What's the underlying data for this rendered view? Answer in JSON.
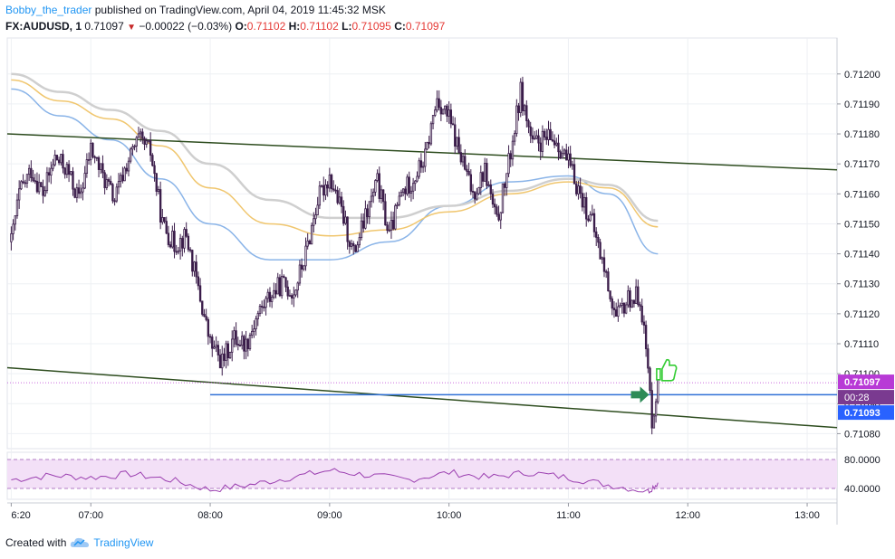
{
  "header": {
    "author": "Bobby_the_trader",
    "published_text": "published on TradingView.com, April 04, 2019 11:45:32 MSK",
    "symbol": "FX:AUDUSD, 1",
    "last": "0.71097",
    "change": "−0.00022 (−0.03%)",
    "o_label": "O:",
    "o_value": "0.71102",
    "h_label": "H:",
    "h_value": "0.71102",
    "l_label": "L:",
    "l_value": "0.71095",
    "c_label": "C:",
    "c_value": "0.71097"
  },
  "footer": {
    "created_with": "Created with",
    "brand": "TradingView"
  },
  "colors": {
    "candle": "#3b1d4a",
    "trendline": "#2e4d1f",
    "support": "#2f6fd6",
    "ma_fast": "#8ab4e8",
    "ma_mid": "#f0c66e",
    "ma_slow": "#cfcfcf",
    "rsi": "#9b3fb0",
    "rsi_band": "#f3e0f7",
    "price_badge": "#b83ad6",
    "level_badge": "#2962ff",
    "arrow": "#2e8b57",
    "thumb": "#33cc33"
  },
  "icons": {
    "arrow": "right-arrow-icon",
    "thumb": "thumbs-up-icon",
    "logo": "tradingview-cloud-icon"
  },
  "chart_data": {
    "type": "candlestick",
    "title": "",
    "xlabel": "",
    "ylabel": "",
    "x_tick_labels": [
      "6:20",
      "07:00",
      "08:00",
      "09:00",
      "10:00",
      "11:00",
      "12:00",
      "13:00"
    ],
    "x_tick_times": [
      "06:20",
      "07:00",
      "08:00",
      "09:00",
      "10:00",
      "11:00",
      "12:00",
      "13:00"
    ],
    "xlim": [
      "06:18",
      "13:15"
    ],
    "y_tick_labels": [
      "0.71080",
      "0.71090",
      "0.71100",
      "0.71110",
      "0.71120",
      "0.71130",
      "0.71140",
      "0.71150",
      "0.71160",
      "0.71170",
      "0.71180",
      "0.71190",
      "0.71200"
    ],
    "ylim": [
      0.71075,
      0.71212
    ],
    "grid": true,
    "close_path": [
      {
        "t": "06:20",
        "p": 0.71144
      },
      {
        "t": "06:24",
        "p": 0.7116
      },
      {
        "t": "06:30",
        "p": 0.71168
      },
      {
        "t": "06:36",
        "p": 0.7116
      },
      {
        "t": "06:42",
        "p": 0.71172
      },
      {
        "t": "06:48",
        "p": 0.71168
      },
      {
        "t": "06:54",
        "p": 0.71158
      },
      {
        "t": "07:00",
        "p": 0.71175
      },
      {
        "t": "07:06",
        "p": 0.71166
      },
      {
        "t": "07:12",
        "p": 0.71158
      },
      {
        "t": "07:18",
        "p": 0.7117
      },
      {
        "t": "07:24",
        "p": 0.71178
      },
      {
        "t": "07:30",
        "p": 0.71174
      },
      {
        "t": "07:36",
        "p": 0.7115
      },
      {
        "t": "07:42",
        "p": 0.71143
      },
      {
        "t": "07:48",
        "p": 0.71146
      },
      {
        "t": "07:54",
        "p": 0.71128
      },
      {
        "t": "08:00",
        "p": 0.7111
      },
      {
        "t": "08:06",
        "p": 0.71104
      },
      {
        "t": "08:12",
        "p": 0.71112
      },
      {
        "t": "08:18",
        "p": 0.7111
      },
      {
        "t": "08:24",
        "p": 0.7112
      },
      {
        "t": "08:30",
        "p": 0.71126
      },
      {
        "t": "08:36",
        "p": 0.7113
      },
      {
        "t": "08:42",
        "p": 0.71127
      },
      {
        "t": "08:48",
        "p": 0.7114
      },
      {
        "t": "08:54",
        "p": 0.71158
      },
      {
        "t": "09:00",
        "p": 0.71166
      },
      {
        "t": "09:06",
        "p": 0.71154
      },
      {
        "t": "09:12",
        "p": 0.7114
      },
      {
        "t": "09:18",
        "p": 0.71152
      },
      {
        "t": "09:24",
        "p": 0.71164
      },
      {
        "t": "09:30",
        "p": 0.71146
      },
      {
        "t": "09:36",
        "p": 0.7116
      },
      {
        "t": "09:42",
        "p": 0.71165
      },
      {
        "t": "09:48",
        "p": 0.71172
      },
      {
        "t": "09:54",
        "p": 0.71192
      },
      {
        "t": "10:00",
        "p": 0.71185
      },
      {
        "t": "10:06",
        "p": 0.71172
      },
      {
        "t": "10:12",
        "p": 0.7116
      },
      {
        "t": "10:18",
        "p": 0.71168
      },
      {
        "t": "10:24",
        "p": 0.7115
      },
      {
        "t": "10:30",
        "p": 0.7117
      },
      {
        "t": "10:36",
        "p": 0.71194
      },
      {
        "t": "10:42",
        "p": 0.71176
      },
      {
        "t": "10:48",
        "p": 0.71178
      },
      {
        "t": "10:54",
        "p": 0.71178
      },
      {
        "t": "11:00",
        "p": 0.7117
      },
      {
        "t": "11:06",
        "p": 0.7116
      },
      {
        "t": "11:12",
        "p": 0.7115
      },
      {
        "t": "11:18",
        "p": 0.71135
      },
      {
        "t": "11:24",
        "p": 0.71118
      },
      {
        "t": "11:30",
        "p": 0.71125
      },
      {
        "t": "11:36",
        "p": 0.71126
      },
      {
        "t": "11:39",
        "p": 0.71108
      },
      {
        "t": "11:42",
        "p": 0.71085
      },
      {
        "t": "11:45",
        "p": 0.71097
      }
    ],
    "moving_averages": [
      {
        "color": "#8ab4e8",
        "points": [
          {
            "t": "06:20",
            "p": 0.71195
          },
          {
            "t": "06:45",
            "p": 0.71186
          },
          {
            "t": "07:10",
            "p": 0.71178
          },
          {
            "t": "07:35",
            "p": 0.71165
          },
          {
            "t": "08:00",
            "p": 0.7115
          },
          {
            "t": "08:30",
            "p": 0.71138
          },
          {
            "t": "09:00",
            "p": 0.71138
          },
          {
            "t": "09:30",
            "p": 0.71144
          },
          {
            "t": "10:00",
            "p": 0.71156
          },
          {
            "t": "10:30",
            "p": 0.71164
          },
          {
            "t": "11:00",
            "p": 0.71166
          },
          {
            "t": "11:20",
            "p": 0.7116
          },
          {
            "t": "11:45",
            "p": 0.7114
          }
        ]
      },
      {
        "color": "#f0c66e",
        "points": [
          {
            "t": "06:20",
            "p": 0.71198
          },
          {
            "t": "06:45",
            "p": 0.71191
          },
          {
            "t": "07:10",
            "p": 0.71185
          },
          {
            "t": "07:35",
            "p": 0.71176
          },
          {
            "t": "08:00",
            "p": 0.71162
          },
          {
            "t": "08:30",
            "p": 0.7115
          },
          {
            "t": "09:00",
            "p": 0.71146
          },
          {
            "t": "09:30",
            "p": 0.71148
          },
          {
            "t": "10:00",
            "p": 0.71154
          },
          {
            "t": "10:30",
            "p": 0.7116
          },
          {
            "t": "11:00",
            "p": 0.71164
          },
          {
            "t": "11:20",
            "p": 0.71162
          },
          {
            "t": "11:45",
            "p": 0.71149
          }
        ]
      },
      {
        "color": "#cfcfcf",
        "points": [
          {
            "t": "06:20",
            "p": 0.712
          },
          {
            "t": "06:45",
            "p": 0.71194
          },
          {
            "t": "07:10",
            "p": 0.71188
          },
          {
            "t": "07:35",
            "p": 0.71181
          },
          {
            "t": "08:00",
            "p": 0.7117
          },
          {
            "t": "08:30",
            "p": 0.71158
          },
          {
            "t": "09:00",
            "p": 0.71152
          },
          {
            "t": "09:30",
            "p": 0.71152
          },
          {
            "t": "10:00",
            "p": 0.71156
          },
          {
            "t": "10:30",
            "p": 0.71161
          },
          {
            "t": "11:00",
            "p": 0.71165
          },
          {
            "t": "11:20",
            "p": 0.71163
          },
          {
            "t": "11:45",
            "p": 0.71151
          }
        ]
      }
    ],
    "trendlines": [
      {
        "from": {
          "t": "06:18",
          "p": 0.7118
        },
        "to": {
          "t": "13:15",
          "p": 0.71168
        }
      },
      {
        "from": {
          "t": "06:18",
          "p": 0.71102
        },
        "to": {
          "t": "13:15",
          "p": 0.71082
        }
      }
    ],
    "support_level": {
      "from": "08:00",
      "to": "13:15",
      "p": 0.71093
    },
    "last_price_line": 0.71097,
    "price_badges": [
      {
        "label": "0.71097",
        "p": 0.71097,
        "kind": "price"
      },
      {
        "label": "00:28",
        "p": 0.710955,
        "kind": "timer"
      },
      {
        "label": "0.71093",
        "p": 0.71093,
        "kind": "level"
      }
    ],
    "markers": [
      {
        "kind": "arrow",
        "t": "11:36",
        "p": 0.71093
      },
      {
        "kind": "thumb",
        "t": "11:48",
        "p": 0.71101
      }
    ],
    "rsi": {
      "y_tick_labels": [
        "80.0000",
        "40.0000"
      ],
      "ylim": [
        25,
        90
      ],
      "band": [
        40,
        80
      ],
      "values": [
        {
          "t": "06:20",
          "v": 52
        },
        {
          "t": "06:40",
          "v": 58
        },
        {
          "t": "07:00",
          "v": 55
        },
        {
          "t": "07:20",
          "v": 60
        },
        {
          "t": "07:40",
          "v": 52
        },
        {
          "t": "08:00",
          "v": 38
        },
        {
          "t": "08:20",
          "v": 45
        },
        {
          "t": "08:40",
          "v": 55
        },
        {
          "t": "09:00",
          "v": 65
        },
        {
          "t": "09:20",
          "v": 58
        },
        {
          "t": "09:40",
          "v": 52
        },
        {
          "t": "10:00",
          "v": 62
        },
        {
          "t": "10:20",
          "v": 55
        },
        {
          "t": "10:40",
          "v": 62
        },
        {
          "t": "11:00",
          "v": 55
        },
        {
          "t": "11:20",
          "v": 45
        },
        {
          "t": "11:40",
          "v": 36
        },
        {
          "t": "11:45",
          "v": 48
        }
      ]
    }
  }
}
